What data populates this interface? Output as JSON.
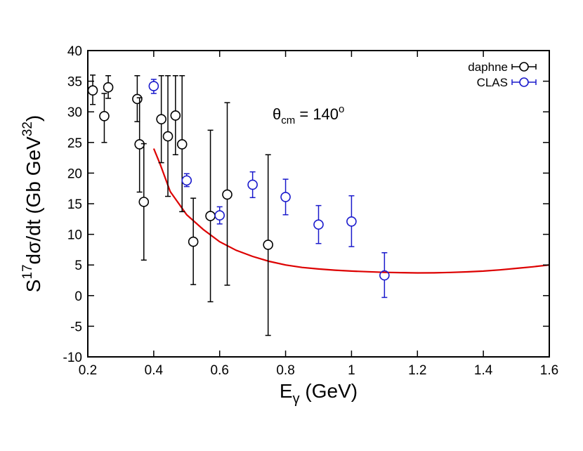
{
  "chart_data": {
    "type": "scatter",
    "xlabel": {
      "base": "E",
      "sub": "γ",
      "rest": " (GeV)"
    },
    "ylabel": {
      "base": "S",
      "sup": "17",
      "mid": "dσ/dt (Gb GeV",
      "sup2": "32",
      "end": ")"
    },
    "xlim": [
      0.2,
      1.6
    ],
    "ylim": [
      -10,
      40
    ],
    "xticks": [
      0.2,
      0.4,
      0.6,
      0.8,
      1,
      1.2,
      1.4,
      1.6
    ],
    "xtick_labels": [
      "0.2",
      "0.4",
      "0.6",
      "0.8",
      "1",
      "1.2",
      "1.4",
      "1.6"
    ],
    "yticks": [
      -10,
      -5,
      0,
      5,
      10,
      15,
      20,
      25,
      30,
      35,
      40
    ],
    "ytick_labels": [
      "-10",
      "-5",
      "0",
      "5",
      "10",
      "15",
      "20",
      "25",
      "30",
      "35",
      "40"
    ],
    "grid": false,
    "legend_position": "top-right",
    "annotation": {
      "base": "θ",
      "sub": "cm",
      "eq": " = 140",
      "sup": "o"
    },
    "series": [
      {
        "name": "daphne",
        "color": "#000000",
        "marker": "open-circle",
        "points": [
          {
            "x": 0.215,
            "y": 33.5,
            "lo": 31.2,
            "hi": 36.0
          },
          {
            "x": 0.25,
            "y": 29.3,
            "lo": 25.0,
            "hi": 33.0
          },
          {
            "x": 0.262,
            "y": 34.0,
            "lo": 32.2,
            "hi": 35.9
          },
          {
            "x": 0.35,
            "y": 32.1,
            "lo": 28.4,
            "hi": 35.9
          },
          {
            "x": 0.357,
            "y": 24.7,
            "lo": 16.9,
            "hi": 32.3
          },
          {
            "x": 0.37,
            "y": 15.3,
            "lo": 5.8,
            "hi": 24.8
          },
          {
            "x": 0.423,
            "y": 28.8,
            "lo": 21.7,
            "hi": 35.9
          },
          {
            "x": 0.443,
            "y": 26.0,
            "lo": 16.2,
            "hi": 35.9
          },
          {
            "x": 0.466,
            "y": 29.4,
            "lo": 23.0,
            "hi": 35.9
          },
          {
            "x": 0.486,
            "y": 24.7,
            "lo": 13.7,
            "hi": 35.9
          },
          {
            "x": 0.52,
            "y": 8.8,
            "lo": 1.8,
            "hi": 15.9
          },
          {
            "x": 0.572,
            "y": 13.0,
            "lo": -1.0,
            "hi": 27.0
          },
          {
            "x": 0.623,
            "y": 16.5,
            "lo": 1.7,
            "hi": 31.5
          },
          {
            "x": 0.747,
            "y": 8.3,
            "lo": -6.5,
            "hi": 23.0
          }
        ]
      },
      {
        "name": "CLAS",
        "color": "#1a1acc",
        "marker": "open-circle",
        "points": [
          {
            "x": 0.4,
            "y": 34.2,
            "lo": 33.0,
            "hi": 35.3
          },
          {
            "x": 0.5,
            "y": 18.8,
            "lo": 17.8,
            "hi": 19.9
          },
          {
            "x": 0.6,
            "y": 13.1,
            "lo": 11.7,
            "hi": 14.5
          },
          {
            "x": 0.7,
            "y": 18.1,
            "lo": 16.0,
            "hi": 20.2
          },
          {
            "x": 0.8,
            "y": 16.1,
            "lo": 13.2,
            "hi": 19.0
          },
          {
            "x": 0.9,
            "y": 11.6,
            "lo": 8.5,
            "hi": 14.7
          },
          {
            "x": 1.0,
            "y": 12.1,
            "lo": 8.0,
            "hi": 16.3
          },
          {
            "x": 1.1,
            "y": 3.3,
            "lo": -0.3,
            "hi": 7.0
          }
        ]
      }
    ],
    "curve": {
      "color": "#dd0000",
      "x": [
        0.4,
        0.42,
        0.45,
        0.5,
        0.55,
        0.6,
        0.65,
        0.7,
        0.75,
        0.8,
        0.85,
        0.9,
        0.95,
        1.0,
        1.05,
        1.1,
        1.15,
        1.2,
        1.25,
        1.3,
        1.35,
        1.4,
        1.45,
        1.5,
        1.55,
        1.6
      ],
      "y": [
        24.0,
        21.4,
        17.0,
        13.2,
        10.8,
        8.8,
        7.4,
        6.4,
        5.6,
        5.0,
        4.6,
        4.35,
        4.15,
        4.0,
        3.9,
        3.8,
        3.75,
        3.7,
        3.72,
        3.78,
        3.88,
        4.0,
        4.2,
        4.45,
        4.7,
        5.0
      ]
    }
  }
}
